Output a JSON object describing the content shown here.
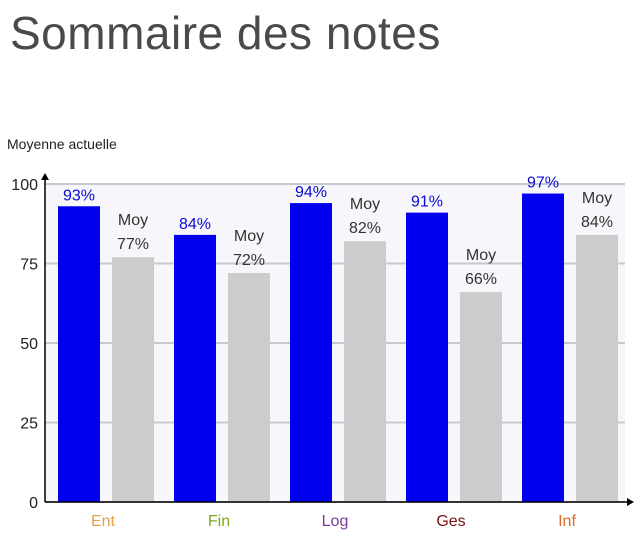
{
  "page": {
    "title": "Sommaire des notes"
  },
  "chart_data": {
    "type": "bar",
    "title": "Sommaire des notes",
    "ylabel": "Moyenne actuelle",
    "xlabel": "",
    "ylim": [
      0,
      100
    ],
    "yticks": [
      0,
      25,
      50,
      75,
      100
    ],
    "grid": true,
    "categories": [
      "Ent",
      "Fin",
      "Log",
      "Ges",
      "Inf"
    ],
    "category_colors": [
      "#e0a050",
      "#7aaa1e",
      "#7a3a9a",
      "#7a1010",
      "#e06a30"
    ],
    "series": [
      {
        "values": [
          93,
          84,
          94,
          91,
          97
        ],
        "color": "#0000ee",
        "labels": [
          "93%",
          "84%",
          "94%",
          "91%",
          "97%"
        ]
      },
      {
        "values": [
          77,
          72,
          82,
          66,
          84
        ],
        "color": "#cccccc",
        "label_prefix": "Moy",
        "labels": [
          "77%",
          "72%",
          "82%",
          "66%",
          "84%"
        ]
      }
    ]
  }
}
